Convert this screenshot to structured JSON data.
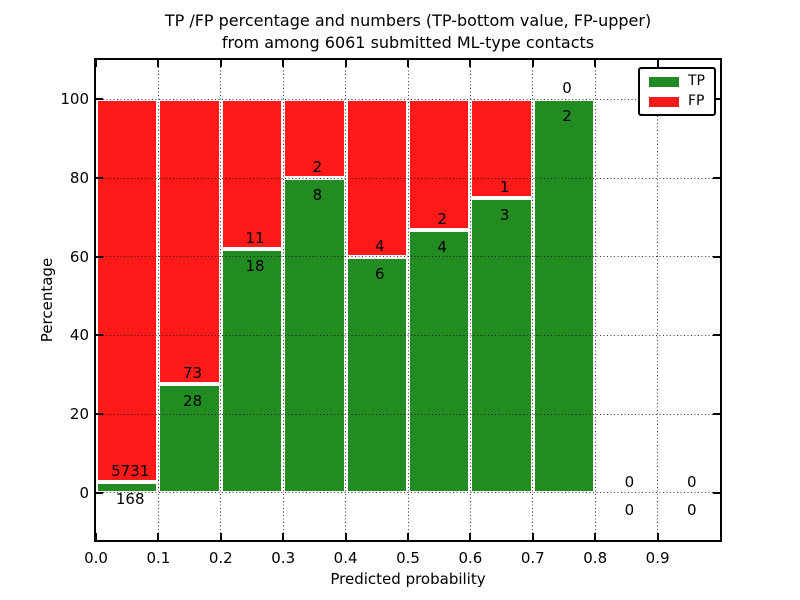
{
  "title": {
    "line1": "TP /FP percentage and numbers (TP-bottom value, FP-upper)",
    "line2": "from among 6061 submitted ML-type contacts"
  },
  "chart_data": {
    "type": "bar",
    "stacked": true,
    "normalized": "percent",
    "title": "TP /FP percentage and numbers (TP-bottom value, FP-upper) from among 6061 submitted ML-type contacts",
    "xlabel": "Predicted probability",
    "ylabel": "Percentage",
    "total_submitted": 6061,
    "bin_width": 0.1,
    "bin_starts": [
      0.0,
      0.1,
      0.2,
      0.3,
      0.4,
      0.5,
      0.6,
      0.7,
      0.8,
      0.9
    ],
    "series": [
      {
        "name": "TP",
        "color": "#228b22",
        "counts": [
          168,
          28,
          18,
          8,
          6,
          4,
          3,
          2,
          0,
          0
        ]
      },
      {
        "name": "FP",
        "color": "#ff1a1a",
        "counts": [
          5731,
          73,
          11,
          2,
          4,
          2,
          1,
          0,
          0,
          0
        ]
      }
    ],
    "tp_percent": [
      2.85,
      27.72,
      62.07,
      80.0,
      60.0,
      66.67,
      75.0,
      100.0,
      0,
      0
    ],
    "xticks": [
      "0.0",
      "0.1",
      "0.2",
      "0.3",
      "0.4",
      "0.5",
      "0.6",
      "0.7",
      "0.8",
      "0.9"
    ],
    "yticks": [
      0,
      20,
      40,
      60,
      80,
      100
    ],
    "xlim": [
      0.0,
      1.0
    ],
    "ylim": [
      -12,
      110
    ],
    "grid": {
      "style": "dotted",
      "color": "#000000",
      "drawn_over_bars": true
    },
    "legend": {
      "position": "upper-right",
      "items": [
        {
          "label": "TP",
          "color": "#228b22"
        },
        {
          "label": "FP",
          "color": "#ff1a1a"
        }
      ]
    }
  },
  "colors": {
    "tp_green": "#228b22",
    "fp_red": "#ff1a1a",
    "background": "#ffffff",
    "axes": "#000000"
  }
}
